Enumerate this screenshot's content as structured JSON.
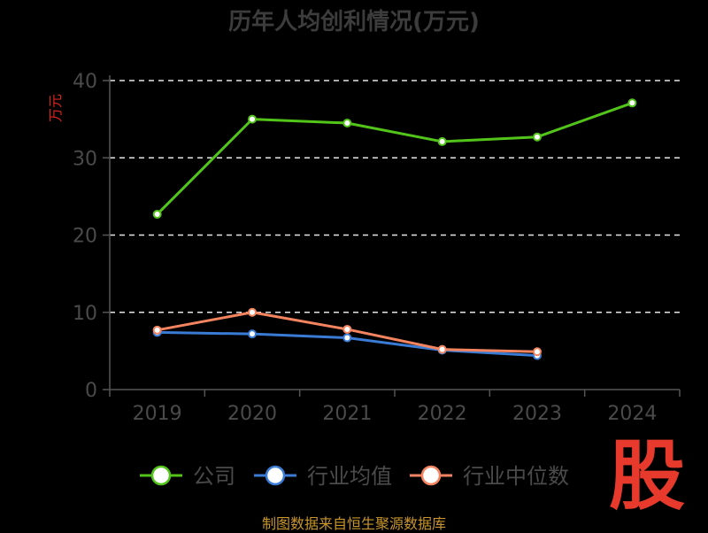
{
  "chart_data": {
    "type": "line",
    "title": "历年人均创利情况(万元)",
    "ylabel": "万元",
    "categories": [
      "2019",
      "2020",
      "2021",
      "2022",
      "2023",
      "2024"
    ],
    "ylim": [
      0,
      40
    ],
    "yticks": [
      "0",
      "10",
      "20",
      "30",
      "40"
    ],
    "grid": true,
    "legend_position": "bottom",
    "series": [
      {
        "name": "公司",
        "color": "#52c41a",
        "values": [
          22.7,
          35.0,
          34.5,
          32.1,
          32.7,
          37.1
        ]
      },
      {
        "name": "行业均值",
        "color": "#3a7bd5",
        "values": [
          7.4,
          7.2,
          6.7,
          5.1,
          4.4,
          null
        ]
      },
      {
        "name": "行业中位数",
        "color": "#f4845f",
        "values": [
          7.7,
          10.0,
          7.8,
          5.2,
          4.9,
          null
        ]
      }
    ]
  },
  "source_text": "制图数据来自恒生聚源数据库",
  "logo_text": "股"
}
